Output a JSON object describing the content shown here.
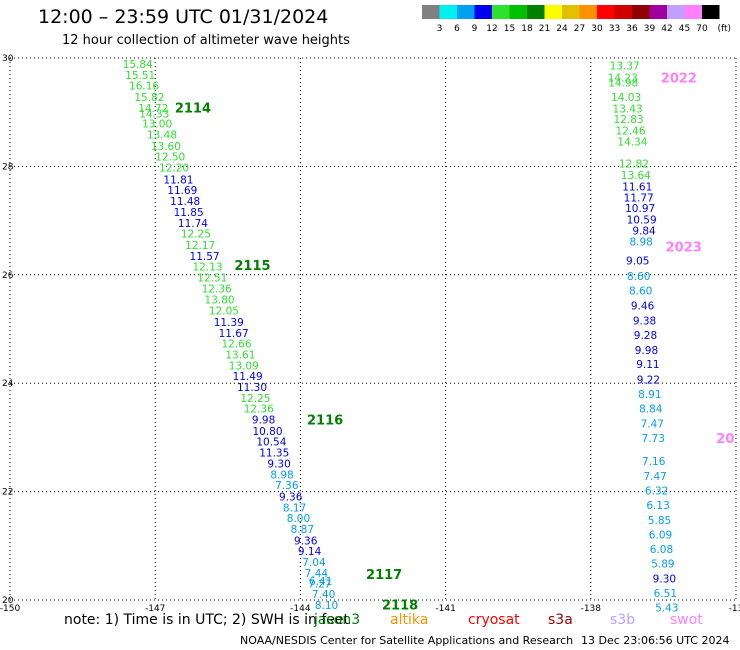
{
  "header": {
    "title": "12:00 – 23:59 UTC 01/31/2024",
    "subtitle": "12 hour collection of altimeter wave heights"
  },
  "legend": {
    "labels": [
      "3",
      "6",
      "9",
      "12",
      "15",
      "18",
      "21",
      "24",
      "27",
      "30",
      "33",
      "36",
      "39",
      "42",
      "45",
      "70"
    ],
    "unit": "(ft)",
    "colors": [
      "#808080",
      "#00f0f0",
      "#00a0f0",
      "#0000f0",
      "#30e030",
      "#00c000",
      "#008000",
      "#ffff00",
      "#e0c000",
      "#ff9000",
      "#ff0000",
      "#d00000",
      "#900000",
      "#a000a0",
      "#c0a0ff",
      "#ff80ff",
      "#000000"
    ]
  },
  "footer": {
    "note": "note: 1) Time is in UTC; 2) SWH is in feet",
    "credit": "NOAA/NESDIS Center for Satellite Applications and Research",
    "date": "13 Dec 23:06:56 UTC 2024",
    "satellites": [
      {
        "name": "jason3",
        "color": "#008000"
      },
      {
        "name": "altika",
        "color": "#ff9000"
      },
      {
        "name": "cryosat",
        "color": "#ff0000"
      },
      {
        "name": "s3a",
        "color": "#900000"
      },
      {
        "name": "s3b",
        "color": "#c0a0ff"
      },
      {
        "name": "swot",
        "color": "#ff80ff"
      }
    ]
  },
  "chart_data": {
    "type": "scatter",
    "title": "12:00 – 23:59 UTC 01/31/2024",
    "xlabel": "",
    "ylabel": "",
    "xlim": [
      -150,
      -135
    ],
    "ylim": [
      20,
      30
    ],
    "xticks": [
      "-150",
      "-147",
      "-144",
      "-141",
      "-138",
      "-13"
    ],
    "yticks": [
      "20",
      "22",
      "24",
      "26",
      "28",
      "30"
    ],
    "grid": true,
    "series": [
      {
        "name": "jason3",
        "points": [
          {
            "lon": -147.36,
            "lat": 29.89,
            "v": "15.84",
            "c": "#30e030"
          },
          {
            "lon": -147.31,
            "lat": 29.69,
            "v": "15.51",
            "c": "#30e030"
          },
          {
            "lon": -147.23,
            "lat": 29.49,
            "v": "16.16",
            "c": "#30e030"
          },
          {
            "lon": -147.12,
            "lat": 29.28,
            "v": "15.82",
            "c": "#30e030"
          },
          {
            "lon": -147.04,
            "lat": 29.08,
            "v": "14.72",
            "c": "#30e030"
          },
          {
            "lon": -147.02,
            "lat": 28.98,
            "v": "14.33",
            "c": "#30e030"
          },
          {
            "lon": -146.96,
            "lat": 28.79,
            "v": "13.00",
            "c": "#30e030"
          },
          {
            "lon": -146.86,
            "lat": 28.59,
            "v": "13.48",
            "c": "#30e030"
          },
          {
            "lon": -146.78,
            "lat": 28.38,
            "v": "13.60",
            "c": "#30e030"
          },
          {
            "lon": -146.69,
            "lat": 28.18,
            "v": "12.50",
            "c": "#30e030"
          },
          {
            "lon": -146.61,
            "lat": 27.98,
            "v": "12.20",
            "c": "#30e030"
          },
          {
            "lon": -146.52,
            "lat": 27.76,
            "v": "11.81",
            "c": "#0000f0"
          },
          {
            "lon": -146.44,
            "lat": 27.56,
            "v": "11.69",
            "c": "#0000f0"
          },
          {
            "lon": -146.38,
            "lat": 27.36,
            "v": "11.48",
            "c": "#0000f0"
          },
          {
            "lon": -146.31,
            "lat": 27.16,
            "v": "11.85",
            "c": "#0000f0"
          },
          {
            "lon": -146.22,
            "lat": 26.96,
            "v": "11.74",
            "c": "#0000f0"
          },
          {
            "lon": -146.16,
            "lat": 26.76,
            "v": "12.25",
            "c": "#30e030"
          },
          {
            "lon": -146.07,
            "lat": 26.55,
            "v": "12.17",
            "c": "#30e030"
          },
          {
            "lon": -145.98,
            "lat": 26.35,
            "v": "11.57",
            "c": "#0000f0"
          },
          {
            "lon": -145.92,
            "lat": 26.15,
            "v": "12.13",
            "c": "#30e030"
          },
          {
            "lon": -145.82,
            "lat": 25.95,
            "v": "12.51",
            "c": "#30e030"
          },
          {
            "lon": -145.73,
            "lat": 25.75,
            "v": "12.36",
            "c": "#30e030"
          },
          {
            "lon": -145.67,
            "lat": 25.54,
            "v": "13.80",
            "c": "#30e030"
          },
          {
            "lon": -145.58,
            "lat": 25.34,
            "v": "12.05",
            "c": "#30e030"
          },
          {
            "lon": -145.48,
            "lat": 25.13,
            "v": "11.39",
            "c": "#0000f0"
          },
          {
            "lon": -145.38,
            "lat": 24.93,
            "v": "11.67",
            "c": "#0000f0"
          },
          {
            "lon": -145.32,
            "lat": 24.73,
            "v": "12.66",
            "c": "#30e030"
          },
          {
            "lon": -145.24,
            "lat": 24.53,
            "v": "13.61",
            "c": "#30e030"
          },
          {
            "lon": -145.17,
            "lat": 24.33,
            "v": "13.09",
            "c": "#30e030"
          },
          {
            "lon": -145.09,
            "lat": 24.13,
            "v": "11.49",
            "c": "#0000f0"
          },
          {
            "lon": -145.0,
            "lat": 23.93,
            "v": "11.30",
            "c": "#0000f0"
          },
          {
            "lon": -144.93,
            "lat": 23.73,
            "v": "12.25",
            "c": "#30e030"
          },
          {
            "lon": -144.86,
            "lat": 23.53,
            "v": "12.36",
            "c": "#30e030"
          },
          {
            "lon": -144.76,
            "lat": 23.33,
            "v": "9.98",
            "c": "#0000f0"
          },
          {
            "lon": -144.68,
            "lat": 23.12,
            "v": "10.80",
            "c": "#0000f0"
          },
          {
            "lon": -144.6,
            "lat": 22.92,
            "v": "10.54",
            "c": "#0000f0"
          },
          {
            "lon": -144.54,
            "lat": 22.72,
            "v": "11.35",
            "c": "#0000f0"
          },
          {
            "lon": -144.44,
            "lat": 22.52,
            "v": "9.30",
            "c": "#0000f0"
          },
          {
            "lon": -144.38,
            "lat": 22.32,
            "v": "8.98",
            "c": "#00a0f0"
          },
          {
            "lon": -144.28,
            "lat": 22.12,
            "v": "7.36",
            "c": "#00a0f0"
          },
          {
            "lon": -144.2,
            "lat": 21.91,
            "v": "9.36",
            "c": "#0000f0"
          },
          {
            "lon": -144.12,
            "lat": 21.71,
            "v": "8.17",
            "c": "#00a0f0"
          },
          {
            "lon": -144.04,
            "lat": 21.51,
            "v": "8.00",
            "c": "#00a0f0"
          },
          {
            "lon": -143.96,
            "lat": 21.31,
            "v": "8.87",
            "c": "#00a0f0"
          },
          {
            "lon": -143.89,
            "lat": 21.1,
            "v": "9.36",
            "c": "#0000f0"
          },
          {
            "lon": -143.81,
            "lat": 20.9,
            "v": "9.14",
            "c": "#0000f0"
          },
          {
            "lon": -143.72,
            "lat": 20.7,
            "v": "7.04",
            "c": "#00a0f0"
          },
          {
            "lon": -143.67,
            "lat": 20.5,
            "v": "7.44",
            "c": "#00a0f0"
          },
          {
            "lon": -143.58,
            "lat": 20.35,
            "v": "6.41",
            "c": "#00a0f0"
          },
          {
            "lon": -143.6,
            "lat": 20.3,
            "v": "7.27",
            "c": "#00a0f0"
          },
          {
            "lon": -143.52,
            "lat": 20.11,
            "v": "7.40",
            "c": "#00a0f0"
          },
          {
            "lon": -143.46,
            "lat": 19.91,
            "v": "8.10",
            "c": "#00a0f0"
          }
        ],
        "labels": [
          {
            "text": "2114",
            "lon": -146.22,
            "lat": 29.09,
            "c": "#008000"
          },
          {
            "text": "2115",
            "lon": -144.99,
            "lat": 26.18,
            "c": "#008000"
          },
          {
            "text": "2116",
            "lon": -143.49,
            "lat": 23.33,
            "c": "#008000"
          },
          {
            "text": "2117",
            "lon": -142.27,
            "lat": 20.48,
            "c": "#008000"
          },
          {
            "text": "2118",
            "lon": -141.94,
            "lat": 19.92,
            "c": "#008000"
          }
        ]
      },
      {
        "name": "swot",
        "points": [
          {
            "lon": -137.3,
            "lat": 29.86,
            "v": "13.37",
            "c": "#30e030"
          },
          {
            "lon": -137.34,
            "lat": 29.64,
            "v": "14.23",
            "c": "#30e030"
          },
          {
            "lon": -137.33,
            "lat": 29.55,
            "v": "14.98",
            "c": "#30e030"
          },
          {
            "lon": -137.27,
            "lat": 29.28,
            "v": "14.03",
            "c": "#30e030"
          },
          {
            "lon": -137.24,
            "lat": 29.07,
            "v": "13.43",
            "c": "#30e030"
          },
          {
            "lon": -137.22,
            "lat": 28.87,
            "v": "12.83",
            "c": "#30e030"
          },
          {
            "lon": -137.18,
            "lat": 28.66,
            "v": "12.46",
            "c": "#30e030"
          },
          {
            "lon": -137.14,
            "lat": 28.46,
            "v": "14.34",
            "c": "#30e030"
          },
          {
            "lon": -137.11,
            "lat": 28.05,
            "v": "12.82",
            "c": "#30e030"
          },
          {
            "lon": -137.07,
            "lat": 27.84,
            "v": "13.64",
            "c": "#30e030"
          },
          {
            "lon": -137.04,
            "lat": 27.63,
            "v": "11.61",
            "c": "#0000f0"
          },
          {
            "lon": -137.01,
            "lat": 27.43,
            "v": "11.77",
            "c": "#0000f0"
          },
          {
            "lon": -136.98,
            "lat": 27.23,
            "v": "10.97",
            "c": "#0000f0"
          },
          {
            "lon": -136.95,
            "lat": 27.02,
            "v": "10.59",
            "c": "#0000f0"
          },
          {
            "lon": -136.9,
            "lat": 26.82,
            "v": "9.84",
            "c": "#0000f0"
          },
          {
            "lon": -136.96,
            "lat": 26.61,
            "v": "8.98",
            "c": "#00a0f0"
          },
          {
            "lon": -137.03,
            "lat": 26.26,
            "v": "9.05",
            "c": "#0000f0"
          },
          {
            "lon": -137.01,
            "lat": 25.98,
            "v": "8.60",
            "c": "#00a0f0"
          },
          {
            "lon": -136.97,
            "lat": 25.71,
            "v": "8.60",
            "c": "#00a0f0"
          },
          {
            "lon": -136.93,
            "lat": 25.43,
            "v": "9.46",
            "c": "#0000f0"
          },
          {
            "lon": -136.89,
            "lat": 25.16,
            "v": "9.38",
            "c": "#0000f0"
          },
          {
            "lon": -136.87,
            "lat": 24.89,
            "v": "9.28",
            "c": "#0000f0"
          },
          {
            "lon": -136.85,
            "lat": 24.61,
            "v": "9.98",
            "c": "#0000f0"
          },
          {
            "lon": -136.82,
            "lat": 24.35,
            "v": "9.11",
            "c": "#0000f0"
          },
          {
            "lon": -136.81,
            "lat": 24.07,
            "v": "9.22",
            "c": "#0000f0"
          },
          {
            "lon": -136.78,
            "lat": 23.8,
            "v": "8.91",
            "c": "#00a0f0"
          },
          {
            "lon": -136.76,
            "lat": 23.53,
            "v": "8.84",
            "c": "#00a0f0"
          },
          {
            "lon": -136.73,
            "lat": 23.26,
            "v": "7.47",
            "c": "#00a0f0"
          },
          {
            "lon": -136.71,
            "lat": 22.99,
            "v": "7.73",
            "c": "#00a0f0"
          },
          {
            "lon": -136.7,
            "lat": 22.56,
            "v": "7.16",
            "c": "#00a0f0"
          },
          {
            "lon": -136.67,
            "lat": 22.29,
            "v": "7.47",
            "c": "#00a0f0"
          },
          {
            "lon": -136.64,
            "lat": 22.02,
            "v": "6.32",
            "c": "#00a0f0"
          },
          {
            "lon": -136.61,
            "lat": 21.75,
            "v": "6.13",
            "c": "#00a0f0"
          },
          {
            "lon": -136.58,
            "lat": 21.48,
            "v": "5.85",
            "c": "#00a0f0"
          },
          {
            "lon": -136.56,
            "lat": 21.21,
            "v": "6.09",
            "c": "#00a0f0"
          },
          {
            "lon": -136.54,
            "lat": 20.94,
            "v": "6.08",
            "c": "#00a0f0"
          },
          {
            "lon": -136.51,
            "lat": 20.67,
            "v": "5.89",
            "c": "#00a0f0"
          },
          {
            "lon": -136.48,
            "lat": 20.4,
            "v": "9.30",
            "c": "#0000f0"
          },
          {
            "lon": -136.46,
            "lat": 20.13,
            "v": "6.51",
            "c": "#00a0f0"
          },
          {
            "lon": -136.43,
            "lat": 19.86,
            "v": "5.43",
            "c": "#00a0f0"
          }
        ],
        "labels": [
          {
            "text": "2022",
            "lon": -136.18,
            "lat": 29.64,
            "c": "#ff80ff"
          },
          {
            "text": "2023",
            "lon": -136.08,
            "lat": 26.52,
            "c": "#ff80ff"
          },
          {
            "text": "20",
            "lon": -135.22,
            "lat": 22.99,
            "c": "#ff80ff"
          }
        ]
      }
    ]
  }
}
